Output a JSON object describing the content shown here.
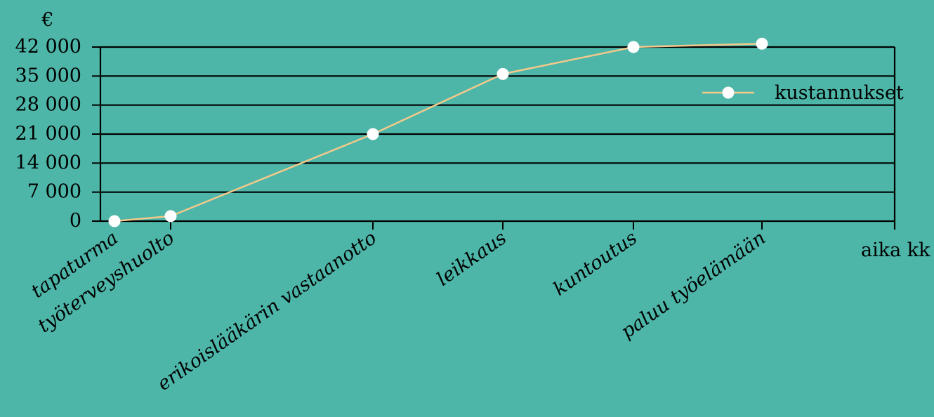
{
  "chart_data": {
    "type": "line",
    "title": "",
    "ylabel": "€",
    "xlabel": "aika kk",
    "ylim": [
      0,
      42000
    ],
    "yticks": [
      "0",
      "7 000",
      "14 000",
      "21 000",
      "28 000",
      "35 000",
      "42 000"
    ],
    "grid": true,
    "legend_position": "top-right",
    "categories": [
      "tapaturma",
      "työterveyshuolto",
      "erikoislääkärin vastaanotto",
      "leikkaus",
      "kuntoutus",
      "paluu työelämään"
    ],
    "series": [
      {
        "name": "kustannukset",
        "color": "#f3c98b",
        "marker_color": "#ffffff",
        "values": [
          0,
          1200,
          21000,
          35500,
          42000,
          42800
        ]
      }
    ]
  },
  "colors": {
    "background": "#4db6a8",
    "axis": "#000000"
  }
}
